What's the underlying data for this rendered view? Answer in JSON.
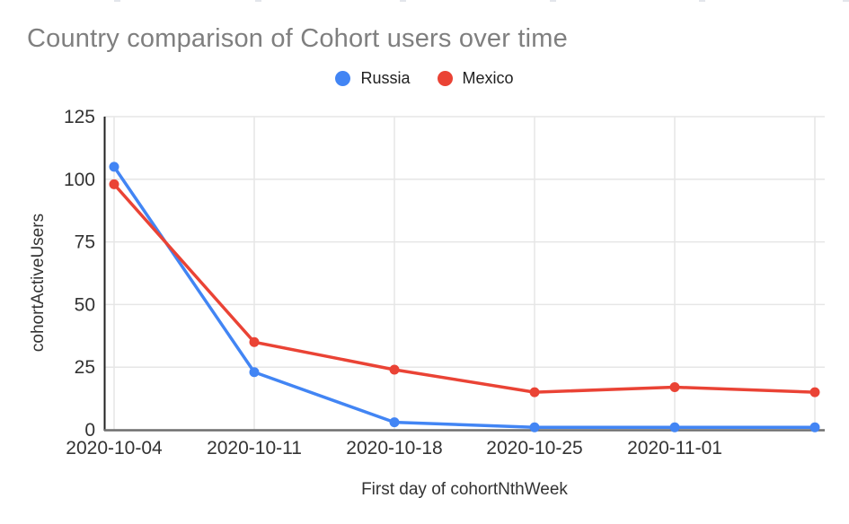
{
  "chart_data": {
    "type": "line",
    "title": "Country comparison of Cohort users over time",
    "xlabel": "First day of cohortNthWeek",
    "ylabel": "cohortActiveUsers",
    "x_tick_labels": [
      "2020-10-04",
      "2020-10-11",
      "2020-10-18",
      "2020-10-25",
      "2020-11-01",
      ""
    ],
    "series": [
      {
        "name": "Russia",
        "color": "#4285F4",
        "values": [
          105,
          23,
          3,
          1,
          1,
          1
        ]
      },
      {
        "name": "Mexico",
        "color": "#EA4335",
        "values": [
          98,
          35,
          24,
          15,
          17,
          15
        ]
      }
    ],
    "ylim": [
      0,
      125
    ],
    "yticks": [
      0,
      25,
      50,
      75,
      100,
      125
    ],
    "grid": true,
    "legend_position": "top",
    "marker": "circle"
  },
  "style": {
    "title_color": "#7f7f7f",
    "tick_label_color": "#333333",
    "gridline_color": "#e6e6e6",
    "baseline_color": "#6e6e6e",
    "y_axis_line_color": "#212121"
  }
}
